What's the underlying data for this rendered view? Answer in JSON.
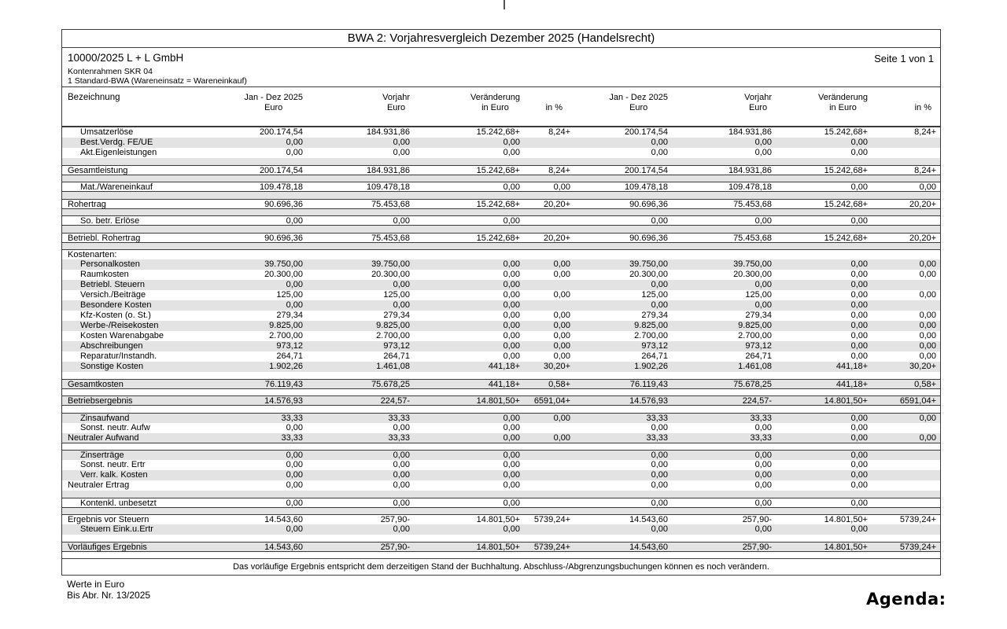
{
  "page": {
    "title": "BWA 2: Vorjahresvergleich Dezember 2025 (Handelsrecht)",
    "client": "10000/2025 L + L GmbH",
    "page_info": "Seite 1 von 1",
    "chart_of_accounts": "Kontenrahmen SKR 04",
    "bwa_form": "1 Standard-BWA (Wareneinsatz = Wareneinkauf)",
    "footnote": "Das vorläufige Ergebnis entspricht dem derzeitigen Stand der Buchhaltung. Abschluss-/Abgrenzungsbuchungen können es noch verändern.",
    "footer_left1": "Werte in Euro",
    "footer_left2": "Bis Abr. Nr. 13/2025",
    "logo": "Agenda:"
  },
  "colors": {
    "shade": "#e3e3e3",
    "line": "#3a3a3a",
    "text": "#000000",
    "page_bg": "#ffffff"
  },
  "columns": {
    "label": "Bezeichnung",
    "groups_repeat": 2,
    "groups": [
      {
        "line1": "Jan - Dez 2025",
        "line2": "Euro"
      },
      {
        "line1": "Vorjahr",
        "line2": "Euro"
      },
      {
        "line1": "Veränderung",
        "line2": "in Euro"
      },
      {
        "line1": "",
        "line2": "in %"
      }
    ]
  },
  "rows": [
    {
      "t": "r",
      "label": "Umsatzerlöse",
      "ind": 1,
      "sh": false,
      "v": [
        "200.174,54",
        "184.931,86",
        "15.242,68+",
        "8,24+"
      ]
    },
    {
      "t": "r",
      "label": "Best.Verdg. FE/UE",
      "ind": 1,
      "sh": true,
      "v": [
        "0,00",
        "0,00",
        "0,00",
        ""
      ]
    },
    {
      "t": "r",
      "label": "Akt.Eigenleistungen",
      "ind": 1,
      "sh": false,
      "v": [
        "0,00",
        "0,00",
        "0,00",
        ""
      ]
    },
    {
      "t": "g",
      "sh": true
    },
    {
      "t": "r",
      "label": "Gesamtleistung",
      "ind": 0,
      "sh": false,
      "bt": true,
      "bb": true,
      "v": [
        "200.174,54",
        "184.931,86",
        "15.242,68+",
        "8,24+"
      ]
    },
    {
      "t": "g",
      "sh": true
    },
    {
      "t": "r",
      "label": "Mat./Wareneinkauf",
      "ind": 1,
      "sh": false,
      "bt": true,
      "bb": true,
      "v": [
        "109.478,18",
        "109.478,18",
        "0,00",
        "0,00"
      ]
    },
    {
      "t": "g",
      "sh": true
    },
    {
      "t": "r",
      "label": "Rohertrag",
      "ind": 0,
      "sh": false,
      "bt": true,
      "bb": true,
      "v": [
        "90.696,36",
        "75.453,68",
        "15.242,68+",
        "20,20+"
      ]
    },
    {
      "t": "g",
      "sh": true
    },
    {
      "t": "r",
      "label": "So. betr. Erlöse",
      "ind": 1,
      "sh": false,
      "bt": true,
      "bb": true,
      "v": [
        "0,00",
        "0,00",
        "0,00",
        ""
      ]
    },
    {
      "t": "g",
      "sh": true
    },
    {
      "t": "r",
      "label": "Betriebl. Rohertrag",
      "ind": 0,
      "sh": false,
      "bt": true,
      "bb": true,
      "v": [
        "90.696,36",
        "75.453,68",
        "15.242,68+",
        "20,20+"
      ]
    },
    {
      "t": "g",
      "sh": true
    },
    {
      "t": "r",
      "label": "Kostenarten:",
      "ind": 0,
      "sh": false,
      "bt": true,
      "v": [
        "",
        "",
        "",
        ""
      ]
    },
    {
      "t": "r",
      "label": "Personalkosten",
      "ind": 1,
      "sh": true,
      "v": [
        "39.750,00",
        "39.750,00",
        "0,00",
        "0,00"
      ]
    },
    {
      "t": "r",
      "label": "Raumkosten",
      "ind": 1,
      "sh": false,
      "v": [
        "20.300,00",
        "20.300,00",
        "0,00",
        "0,00"
      ]
    },
    {
      "t": "r",
      "label": "Betriebl. Steuern",
      "ind": 1,
      "sh": true,
      "v": [
        "0,00",
        "0,00",
        "0,00",
        ""
      ]
    },
    {
      "t": "r",
      "label": "Versich./Beiträge",
      "ind": 1,
      "sh": false,
      "v": [
        "125,00",
        "125,00",
        "0,00",
        "0,00"
      ]
    },
    {
      "t": "r",
      "label": "Besondere Kosten",
      "ind": 1,
      "sh": true,
      "v": [
        "0,00",
        "0,00",
        "0,00",
        ""
      ]
    },
    {
      "t": "r",
      "label": "Kfz-Kosten (o. St.)",
      "ind": 1,
      "sh": false,
      "v": [
        "279,34",
        "279,34",
        "0,00",
        "0,00"
      ]
    },
    {
      "t": "r",
      "label": "Werbe-/Reisekosten",
      "ind": 1,
      "sh": true,
      "v": [
        "9.825,00",
        "9.825,00",
        "0,00",
        "0,00"
      ]
    },
    {
      "t": "r",
      "label": "Kosten Warenabgabe",
      "ind": 1,
      "sh": false,
      "v": [
        "2.700,00",
        "2.700,00",
        "0,00",
        "0,00"
      ]
    },
    {
      "t": "r",
      "label": "Abschreibungen",
      "ind": 1,
      "sh": true,
      "v": [
        "973,12",
        "973,12",
        "0,00",
        "0,00"
      ]
    },
    {
      "t": "r",
      "label": "Reparatur/Instandh.",
      "ind": 1,
      "sh": false,
      "v": [
        "264,71",
        "264,71",
        "0,00",
        "0,00"
      ]
    },
    {
      "t": "r",
      "label": "Sonstige Kosten",
      "ind": 1,
      "sh": true,
      "v": [
        "1.902,26",
        "1.461,08",
        "441,18+",
        "30,20+"
      ]
    },
    {
      "t": "g",
      "sh": false
    },
    {
      "t": "r",
      "label": "Gesamtkosten",
      "ind": 0,
      "sh": true,
      "bt": true,
      "bb": true,
      "v": [
        "76.119,43",
        "75.678,25",
        "441,18+",
        "0,58+"
      ]
    },
    {
      "t": "g",
      "sh": false
    },
    {
      "t": "r",
      "label": "Betriebsergebnis",
      "ind": 0,
      "sh": true,
      "bt": true,
      "bb": true,
      "v": [
        "14.576,93",
        "224,57-",
        "14.801,50+",
        "6591,04+"
      ]
    },
    {
      "t": "g",
      "sh": false
    },
    {
      "t": "r",
      "label": "Zinsaufwand",
      "ind": 1,
      "sh": true,
      "bt": true,
      "v": [
        "33,33",
        "33,33",
        "0,00",
        "0,00"
      ]
    },
    {
      "t": "r",
      "label": "Sonst. neutr. Aufw",
      "ind": 1,
      "sh": false,
      "v": [
        "0,00",
        "0,00",
        "0,00",
        ""
      ]
    },
    {
      "t": "r",
      "label": "Neutraler Aufwand",
      "ind": 0,
      "sh": true,
      "bb": true,
      "v": [
        "33,33",
        "33,33",
        "0,00",
        "0,00"
      ]
    },
    {
      "t": "g",
      "sh": false
    },
    {
      "t": "r",
      "label": "Zinserträge",
      "ind": 1,
      "sh": true,
      "bt": true,
      "v": [
        "0,00",
        "0,00",
        "0,00",
        ""
      ]
    },
    {
      "t": "r",
      "label": "Sonst. neutr. Ertr",
      "ind": 1,
      "sh": false,
      "v": [
        "0,00",
        "0,00",
        "0,00",
        ""
      ]
    },
    {
      "t": "r",
      "label": "Verr. kalk. Kosten",
      "ind": 1,
      "sh": true,
      "v": [
        "0,00",
        "0,00",
        "0,00",
        ""
      ]
    },
    {
      "t": "r",
      "label": "Neutraler Ertrag",
      "ind": 0,
      "sh": false,
      "v": [
        "0,00",
        "0,00",
        "0,00",
        ""
      ]
    },
    {
      "t": "g",
      "sh": true
    },
    {
      "t": "r",
      "label": "Kontenkl. unbesetzt",
      "ind": 1,
      "sh": false,
      "bt": true,
      "bb": true,
      "v": [
        "0,00",
        "0,00",
        "0,00",
        ""
      ]
    },
    {
      "t": "g",
      "sh": true
    },
    {
      "t": "r",
      "label": "Ergebnis vor Steuern",
      "ind": 0,
      "sh": false,
      "bt": true,
      "v": [
        "14.543,60",
        "257,90-",
        "14.801,50+",
        "5739,24+"
      ]
    },
    {
      "t": "r",
      "label": "Steuern Eink.u.Ertr",
      "ind": 1,
      "sh": true,
      "v": [
        "0,00",
        "0,00",
        "0,00",
        ""
      ]
    },
    {
      "t": "g",
      "sh": false
    },
    {
      "t": "r",
      "label": "Vorläufiges Ergebnis",
      "ind": 0,
      "sh": true,
      "bt": true,
      "bb": true,
      "v": [
        "14.543,60",
        "257,90-",
        "14.801,50+",
        "5739,24+"
      ]
    },
    {
      "t": "g",
      "sh": false
    }
  ]
}
